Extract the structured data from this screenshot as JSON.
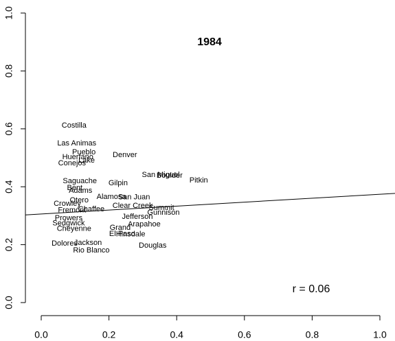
{
  "chart_data": {
    "type": "scatter",
    "title": "1984",
    "annotation": "r = 0.06",
    "points": [
      {
        "label": "Costilla",
        "x": 0.097,
        "y": 0.611
      },
      {
        "label": "Las Animas",
        "x": 0.105,
        "y": 0.55
      },
      {
        "label": "Pueblo",
        "x": 0.126,
        "y": 0.519
      },
      {
        "label": "Huerfano",
        "x": 0.108,
        "y": 0.502
      },
      {
        "label": "Lake",
        "x": 0.134,
        "y": 0.49
      },
      {
        "label": "Conejos",
        "x": 0.091,
        "y": 0.481
      },
      {
        "label": "Denver",
        "x": 0.247,
        "y": 0.509
      },
      {
        "label": "San Miguel",
        "x": 0.353,
        "y": 0.441
      },
      {
        "label": "Boulder",
        "x": 0.379,
        "y": 0.438
      },
      {
        "label": "Pitkin",
        "x": 0.465,
        "y": 0.422
      },
      {
        "label": "Saguache",
        "x": 0.114,
        "y": 0.419
      },
      {
        "label": "Gilpin",
        "x": 0.227,
        "y": 0.412
      },
      {
        "label": "Bent",
        "x": 0.099,
        "y": 0.396
      },
      {
        "label": "Adams",
        "x": 0.116,
        "y": 0.386
      },
      {
        "label": "Alamosa",
        "x": 0.207,
        "y": 0.365
      },
      {
        "label": "San Juan",
        "x": 0.274,
        "y": 0.363
      },
      {
        "label": "Otero",
        "x": 0.112,
        "y": 0.353
      },
      {
        "label": "Crowley",
        "x": 0.077,
        "y": 0.341
      },
      {
        "label": "Clear Creek",
        "x": 0.27,
        "y": 0.334
      },
      {
        "label": "Summit",
        "x": 0.355,
        "y": 0.327
      },
      {
        "label": "Chaffee",
        "x": 0.148,
        "y": 0.322
      },
      {
        "label": "Fremont",
        "x": 0.091,
        "y": 0.318
      },
      {
        "label": "Gunnison",
        "x": 0.361,
        "y": 0.31
      },
      {
        "label": "Jefferson",
        "x": 0.284,
        "y": 0.296
      },
      {
        "label": "Prowers",
        "x": 0.081,
        "y": 0.291
      },
      {
        "label": "Arapahoe",
        "x": 0.304,
        "y": 0.27
      },
      {
        "label": "Sedgwick",
        "x": 0.081,
        "y": 0.273
      },
      {
        "label": "Grand",
        "x": 0.233,
        "y": 0.258
      },
      {
        "label": "Cheyenne",
        "x": 0.097,
        "y": 0.254
      },
      {
        "label": "El Paso",
        "x": 0.239,
        "y": 0.237
      },
      {
        "label": "Hinsdale",
        "x": 0.264,
        "y": 0.235
      },
      {
        "label": "Jackson",
        "x": 0.138,
        "y": 0.206
      },
      {
        "label": "Dolores",
        "x": 0.069,
        "y": 0.204
      },
      {
        "label": "Douglas",
        "x": 0.329,
        "y": 0.197
      },
      {
        "label": "Rio Blanco",
        "x": 0.148,
        "y": 0.18
      }
    ],
    "regression": {
      "intercept": 0.306,
      "slope": 0.068
    },
    "xlim": [
      0,
      1
    ],
    "ylim": [
      0,
      1
    ],
    "xticks": [
      {
        "value": 0,
        "label": "0.0"
      },
      0.2,
      0.4,
      0.6,
      0.8,
      {
        "value": 1,
        "label": "1.0"
      }
    ],
    "yticks": [
      {
        "value": 0,
        "label": "0.0"
      },
      0.2,
      0.4,
      0.6,
      0.8,
      {
        "value": 1,
        "label": "1.0"
      }
    ]
  }
}
